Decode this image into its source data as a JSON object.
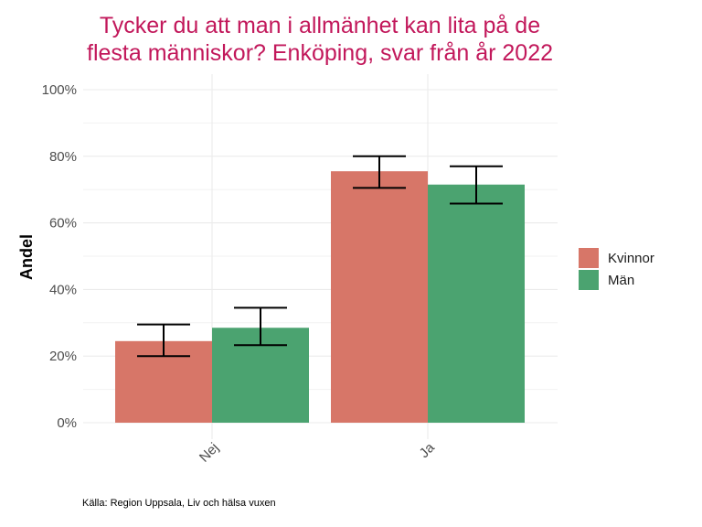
{
  "chart_data": {
    "type": "bar",
    "title_lines": [
      "Tycker du att man i allmänhet kan lita på de",
      "flesta människor? Enköping, svar från år 2022"
    ],
    "xlabel": "",
    "ylabel": "Andel",
    "categories": [
      "Nej",
      "Ja"
    ],
    "ylim": [
      0,
      100
    ],
    "yticks": [
      0,
      20,
      40,
      60,
      80,
      100
    ],
    "ytick_labels": [
      "0%",
      "20%",
      "40%",
      "60%",
      "80%",
      "100%"
    ],
    "grid": true,
    "legend_position": "right",
    "series": [
      {
        "name": "Kvinnor",
        "color": "#d77668",
        "values": [
          24.5,
          75.5
        ],
        "ci_low": [
          20.0,
          70.5
        ],
        "ci_high": [
          29.5,
          80.0
        ]
      },
      {
        "name": "Män",
        "color": "#4ba370",
        "values": [
          28.5,
          71.5
        ],
        "ci_low": [
          23.3,
          65.8
        ],
        "ci_high": [
          34.5,
          77.0
        ]
      }
    ],
    "caption": "Källa: Region Uppsala, Liv och hälsa vuxen"
  }
}
